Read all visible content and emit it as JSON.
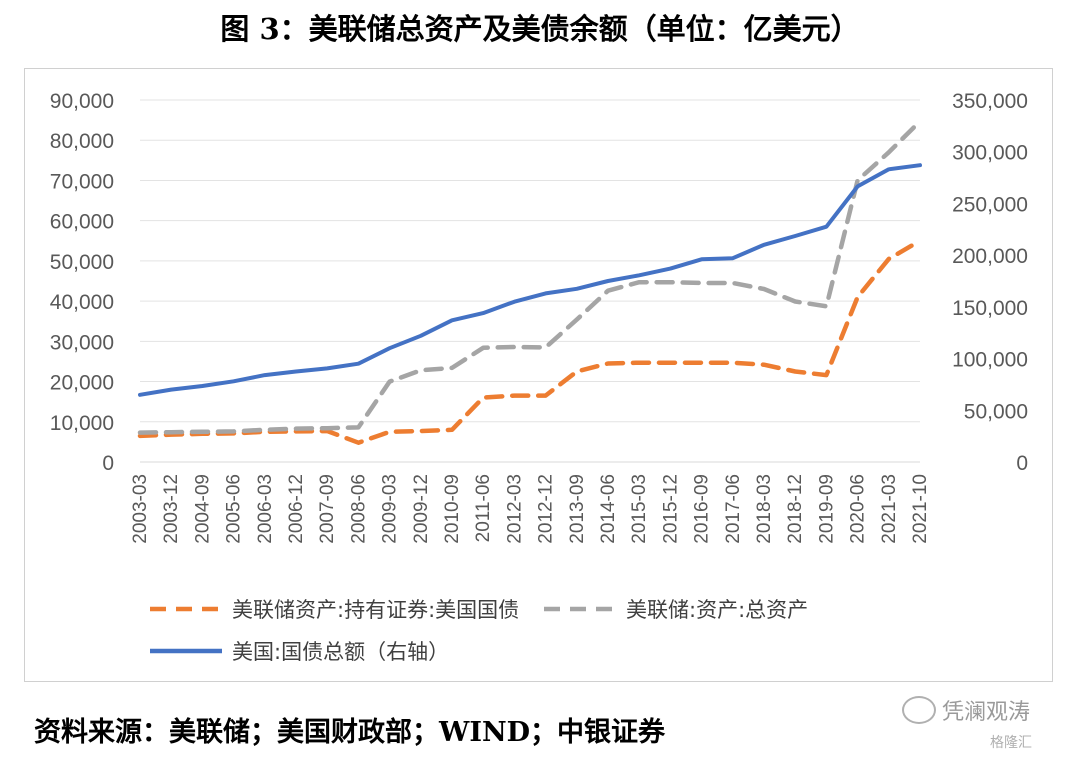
{
  "title": "图 3：美联储总资产及美债余额（单位：亿美元）",
  "source": "资料来源：美联储；美国财政部；WIND；中银证券",
  "watermark": {
    "text": "凭澜观涛",
    "icon": "wechat-icon",
    "brand": "格隆汇"
  },
  "chart_data": {
    "type": "line",
    "title": "",
    "x": [
      "2003-03",
      "2003-12",
      "2004-09",
      "2005-06",
      "2006-03",
      "2006-12",
      "2007-09",
      "2008-06",
      "2009-03",
      "2009-12",
      "2010-09",
      "2011-06",
      "2012-03",
      "2012-12",
      "2013-09",
      "2014-06",
      "2015-03",
      "2015-12",
      "2016-09",
      "2017-06",
      "2018-03",
      "2018-12",
      "2019-09",
      "2020-06",
      "2021-03",
      "2021-10"
    ],
    "left_axis": {
      "min": 0,
      "max": 90000,
      "ticks": [
        "0",
        "10,000",
        "20,000",
        "30,000",
        "40,000",
        "50,000",
        "60,000",
        "70,000",
        "80,000",
        "90,000"
      ]
    },
    "right_axis": {
      "min": 0,
      "max": 350000,
      "ticks": [
        "0",
        "50,000",
        "100,000",
        "150,000",
        "200,000",
        "250,000",
        "300,000",
        "350,000"
      ]
    },
    "grid": true,
    "legend_position": "bottom",
    "series": [
      {
        "name": "美联储资产:持有证券:美国国债",
        "axis": "left",
        "color": "#ED7D31",
        "style": "dashed",
        "values": [
          6500,
          6800,
          7000,
          7100,
          7500,
          7600,
          7700,
          4800,
          7500,
          7700,
          8000,
          16000,
          16500,
          16500,
          22500,
          24500,
          24700,
          24700,
          24700,
          24700,
          24200,
          22500,
          21600,
          41000,
          50500,
          55000
        ]
      },
      {
        "name": "美联储:资产:总资产",
        "axis": "left",
        "color": "#A5A5A5",
        "style": "dashed",
        "values": [
          7300,
          7400,
          7500,
          7600,
          8000,
          8300,
          8400,
          8600,
          20000,
          22800,
          23400,
          28400,
          28600,
          28500,
          35400,
          42600,
          44700,
          44700,
          44500,
          44500,
          43000,
          39900,
          38700,
          70000,
          77000,
          84700
        ]
      },
      {
        "name": "美国:国债总额（右轴）",
        "axis": "right",
        "color": "#4472C4",
        "style": "solid",
        "values": [
          65000,
          70000,
          73500,
          78000,
          84000,
          87500,
          90500,
          95000,
          110000,
          122000,
          137000,
          144000,
          155000,
          163000,
          167500,
          175000,
          180500,
          187000,
          196000,
          197000,
          210000,
          218500,
          227500,
          266500,
          283000,
          287000
        ]
      }
    ]
  }
}
